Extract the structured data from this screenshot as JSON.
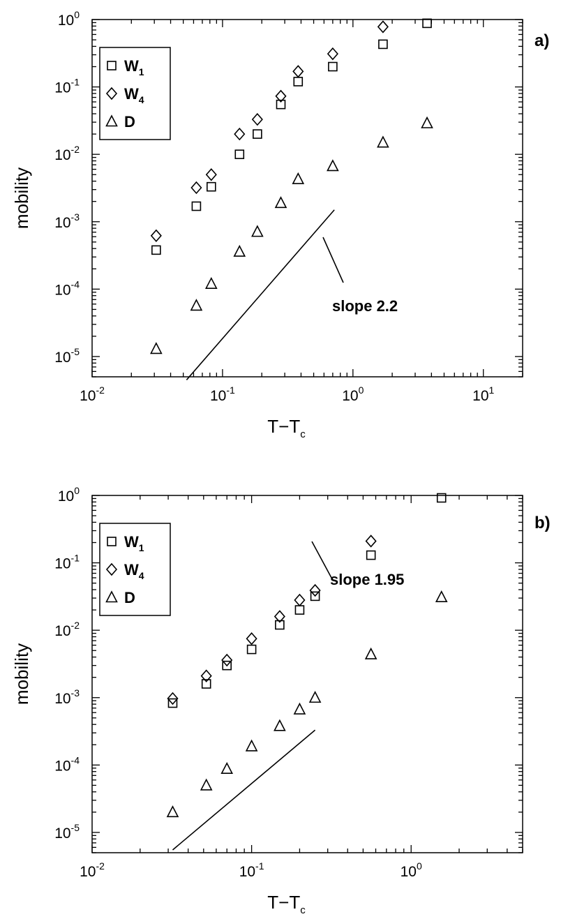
{
  "chart_data": [
    {
      "type": "scatter",
      "panel_label": "a)",
      "xlabel": "T−T",
      "xlabel_sub": "c",
      "ylabel": "mobility",
      "xscale": "log",
      "yscale": "log",
      "xlim": [
        0.01,
        20
      ],
      "ylim": [
        5e-06,
        1
      ],
      "x_ticks": [
        {
          "value": 0.01,
          "base": "10",
          "exp": "-2"
        },
        {
          "value": 0.1,
          "base": "10",
          "exp": "-1"
        },
        {
          "value": 1,
          "base": "10",
          "exp": "0"
        },
        {
          "value": 10,
          "base": "10",
          "exp": "1"
        }
      ],
      "y_ticks": [
        {
          "value": 1e-05,
          "base": "10",
          "exp": "-5"
        },
        {
          "value": 0.0001,
          "base": "10",
          "exp": "-4"
        },
        {
          "value": 0.001,
          "base": "10",
          "exp": "-3"
        },
        {
          "value": 0.01,
          "base": "10",
          "exp": "-2"
        },
        {
          "value": 0.1,
          "base": "10",
          "exp": "-1"
        },
        {
          "value": 1,
          "base": "10",
          "exp": "0"
        }
      ],
      "legend": {
        "position": "top-left"
      },
      "series": [
        {
          "name": "W",
          "name_sub": "1",
          "marker": "square",
          "points": [
            [
              0.031,
              0.00038
            ],
            [
              0.063,
              0.0017
            ],
            [
              0.082,
              0.0033
            ],
            [
              0.135,
              0.01
            ],
            [
              0.185,
              0.02
            ],
            [
              0.28,
              0.055
            ],
            [
              0.38,
              0.12
            ],
            [
              0.7,
              0.2
            ],
            [
              1.7,
              0.43
            ],
            [
              3.7,
              0.88
            ]
          ]
        },
        {
          "name": "W",
          "name_sub": "4",
          "marker": "diamond",
          "points": [
            [
              0.031,
              0.00062
            ],
            [
              0.063,
              0.0032
            ],
            [
              0.082,
              0.005
            ],
            [
              0.135,
              0.02
            ],
            [
              0.185,
              0.033
            ],
            [
              0.28,
              0.073
            ],
            [
              0.38,
              0.17
            ],
            [
              0.7,
              0.31
            ],
            [
              1.7,
              0.78
            ]
          ]
        },
        {
          "name": "D",
          "name_sub": "",
          "marker": "triangle",
          "points": [
            [
              0.031,
              1.3e-05
            ],
            [
              0.063,
              5.7e-05
            ],
            [
              0.082,
              0.00012
            ],
            [
              0.135,
              0.00036
            ],
            [
              0.185,
              0.00071
            ],
            [
              0.28,
              0.0019
            ],
            [
              0.38,
              0.0043
            ],
            [
              0.7,
              0.0067
            ],
            [
              1.7,
              0.015
            ],
            [
              3.7,
              0.029
            ]
          ]
        }
      ],
      "reference_line": {
        "text": "slope 2.2",
        "x1": 0.053,
        "y1": 4.5e-06,
        "x2": 0.72,
        "y2": 0.0015
      }
    },
    {
      "type": "scatter",
      "panel_label": "b)",
      "xlabel": "T−T",
      "xlabel_sub": "c",
      "ylabel": "mobility",
      "xscale": "log",
      "yscale": "log",
      "xlim": [
        0.01,
        5
      ],
      "ylim": [
        5e-06,
        1
      ],
      "x_ticks": [
        {
          "value": 0.01,
          "base": "10",
          "exp": "-2"
        },
        {
          "value": 0.1,
          "base": "10",
          "exp": "-1"
        },
        {
          "value": 1,
          "base": "10",
          "exp": "0"
        }
      ],
      "y_ticks": [
        {
          "value": 1e-05,
          "base": "10",
          "exp": "-5"
        },
        {
          "value": 0.0001,
          "base": "10",
          "exp": "-4"
        },
        {
          "value": 0.001,
          "base": "10",
          "exp": "-3"
        },
        {
          "value": 0.01,
          "base": "10",
          "exp": "-2"
        },
        {
          "value": 0.1,
          "base": "10",
          "exp": "-1"
        },
        {
          "value": 1,
          "base": "10",
          "exp": "0"
        }
      ],
      "legend": {
        "position": "top-left"
      },
      "series": [
        {
          "name": "W",
          "name_sub": "1",
          "marker": "square",
          "points": [
            [
              0.032,
              0.00083
            ],
            [
              0.052,
              0.0016
            ],
            [
              0.07,
              0.003
            ],
            [
              0.1,
              0.0052
            ],
            [
              0.15,
              0.012
            ],
            [
              0.2,
              0.02
            ],
            [
              0.25,
              0.032
            ],
            [
              0.56,
              0.13
            ],
            [
              1.55,
              0.92
            ]
          ]
        },
        {
          "name": "W",
          "name_sub": "4",
          "marker": "diamond",
          "points": [
            [
              0.032,
              0.00097
            ],
            [
              0.052,
              0.0021
            ],
            [
              0.07,
              0.0036
            ],
            [
              0.1,
              0.0075
            ],
            [
              0.15,
              0.016
            ],
            [
              0.2,
              0.028
            ],
            [
              0.25,
              0.039
            ],
            [
              0.56,
              0.21
            ]
          ]
        },
        {
          "name": "D",
          "name_sub": "",
          "marker": "triangle",
          "points": [
            [
              0.032,
              2e-05
            ],
            [
              0.052,
              5e-05
            ],
            [
              0.07,
              8.8e-05
            ],
            [
              0.1,
              0.00019
            ],
            [
              0.15,
              0.00038
            ],
            [
              0.2,
              0.00067
            ],
            [
              0.25,
              0.001
            ],
            [
              0.56,
              0.0044
            ],
            [
              1.55,
              0.031
            ]
          ]
        }
      ],
      "reference_line": {
        "text": "slope 1.95",
        "x1": 0.032,
        "y1": 5.5e-06,
        "x2": 0.25,
        "y2": 0.00033
      }
    }
  ]
}
